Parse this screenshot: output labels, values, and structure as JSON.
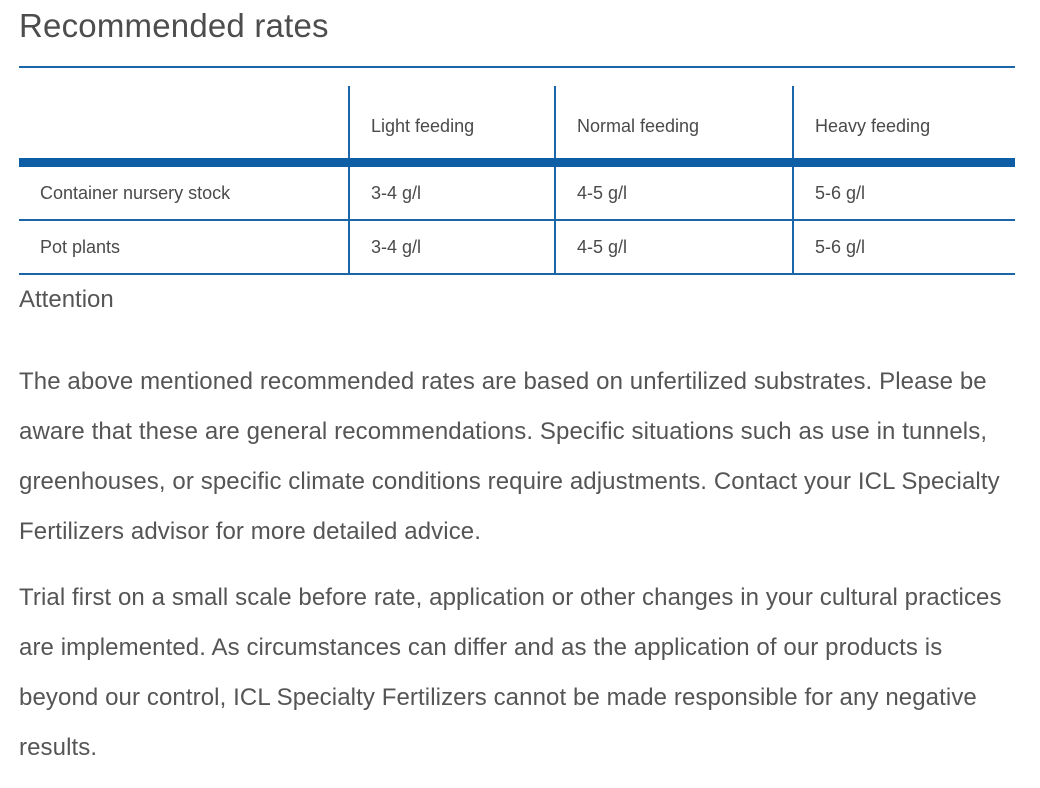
{
  "title": "Recommended rates",
  "table": {
    "headers": [
      "",
      "Light feeding",
      "Normal feeding",
      "Heavy feeding"
    ],
    "rows": [
      [
        "Container nursery stock",
        "3-4 g/l",
        "4-5 g/l",
        "5-6 g/l"
      ],
      [
        "Pot plants",
        "3-4 g/l",
        "4-5 g/l",
        "5-6 g/l"
      ]
    ]
  },
  "attention": "Attention",
  "paragraphs": [
    "The above mentioned recommended rates are based on unfertilized substrates. Please be aware that these are general recommendations. Specific situations such as use in tunnels, greenhouses, or specific climate conditions require adjustments. Contact your ICL Specialty Fertilizers advisor for more detailed advice.",
    "Trial first on a small scale before rate, application or other changes in your cultural practices are implemented. As circumstances can differ and as the application of our products is beyond our control, ICL Specialty Fertilizers cannot be made responsible for any negative results."
  ],
  "colors": {
    "accent": "#1a66a8",
    "header_rule": "#0e5ea6",
    "text": "#4a4a4a"
  }
}
